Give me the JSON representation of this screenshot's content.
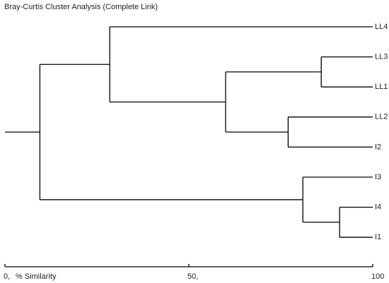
{
  "chart_data": {
    "type": "dendrogram",
    "title": "Bray-Curtis Cluster Analysis (Complete Link)",
    "x_label": "% Similarity",
    "xlim": [
      0,
      100
    ],
    "xticks": [
      {
        "value": 0,
        "label": "0,"
      },
      {
        "value": 50,
        "label": "50,"
      },
      100
    ],
    "color": "#000000",
    "tree": {
      "similarity": 9.5,
      "children": [
        {
          "similarity": 28.5,
          "children": [
            {
              "label": "LL4"
            },
            {
              "similarity": 60,
              "children": [
                {
                  "similarity": 86,
                  "children": [
                    {
                      "label": "LL3"
                    },
                    {
                      "label": "LL1"
                    }
                  ]
                },
                {
                  "similarity": 77,
                  "children": [
                    {
                      "label": "LL2"
                    },
                    {
                      "label": "I2"
                    }
                  ]
                }
              ]
            }
          ]
        },
        {
          "similarity": 81,
          "children": [
            {
              "label": "I3"
            },
            {
              "similarity": 91,
              "children": [
                {
                  "label": "I4"
                },
                {
                  "label": "I1"
                }
              ]
            }
          ]
        }
      ]
    }
  }
}
